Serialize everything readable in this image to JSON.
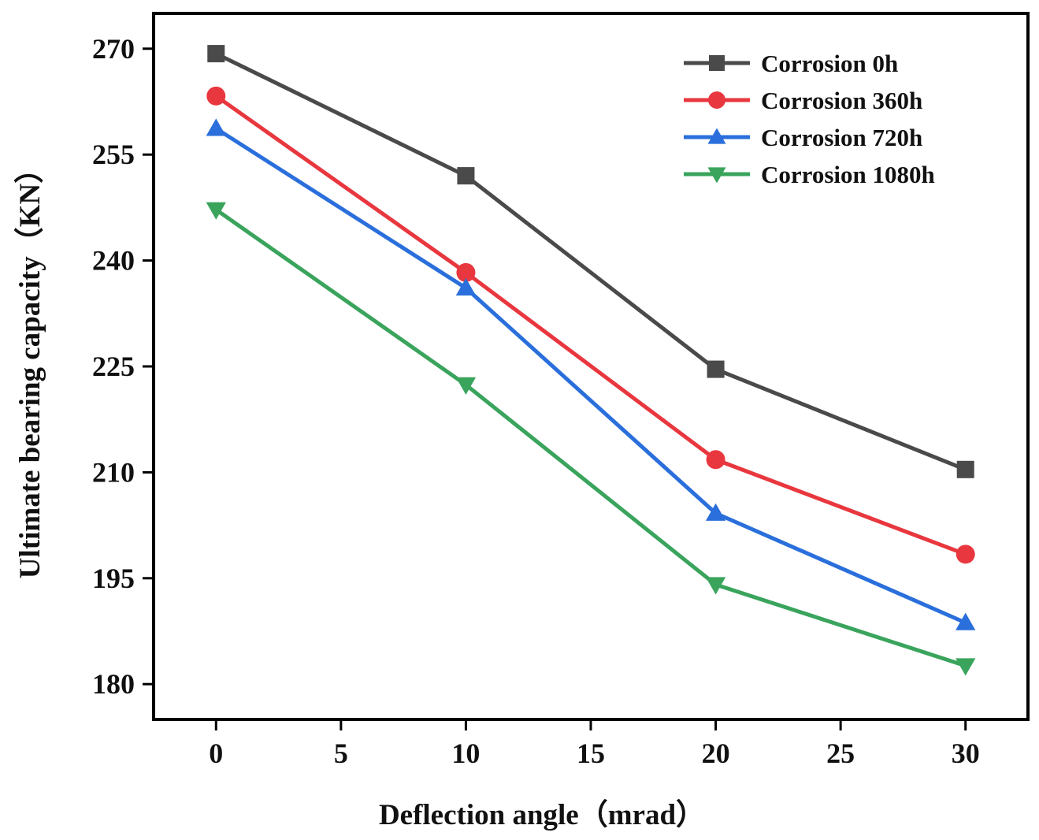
{
  "chart_data": {
    "type": "line",
    "title": "",
    "xlabel": "Deflection angle（mrad）",
    "ylabel": "Ultimate bearing capacity（KN）",
    "xlim": [
      -2.5,
      32.5
    ],
    "ylim": [
      175,
      275
    ],
    "xticks": [
      0,
      5,
      10,
      15,
      20,
      25,
      30
    ],
    "yticks": [
      180,
      195,
      210,
      225,
      240,
      255,
      270
    ],
    "x": [
      0,
      10,
      20,
      30
    ],
    "grid": false,
    "legend_position": "top-right",
    "series": [
      {
        "name": "Corrosion 0h",
        "values": [
          269.3,
          252.0,
          224.6,
          210.4
        ],
        "color": "#4a4a4a",
        "marker": "square"
      },
      {
        "name": "Corrosion 360h",
        "values": [
          263.3,
          238.3,
          211.8,
          198.4
        ],
        "color": "#e8373e",
        "marker": "circle"
      },
      {
        "name": "Corrosion 720h",
        "values": [
          258.7,
          236.1,
          204.2,
          188.7
        ],
        "color": "#2a6fdb",
        "marker": "triangle-up"
      },
      {
        "name": "Corrosion 1080h",
        "values": [
          247.2,
          222.4,
          194.1,
          182.6
        ],
        "color": "#3aa45c",
        "marker": "triangle-down"
      }
    ]
  }
}
